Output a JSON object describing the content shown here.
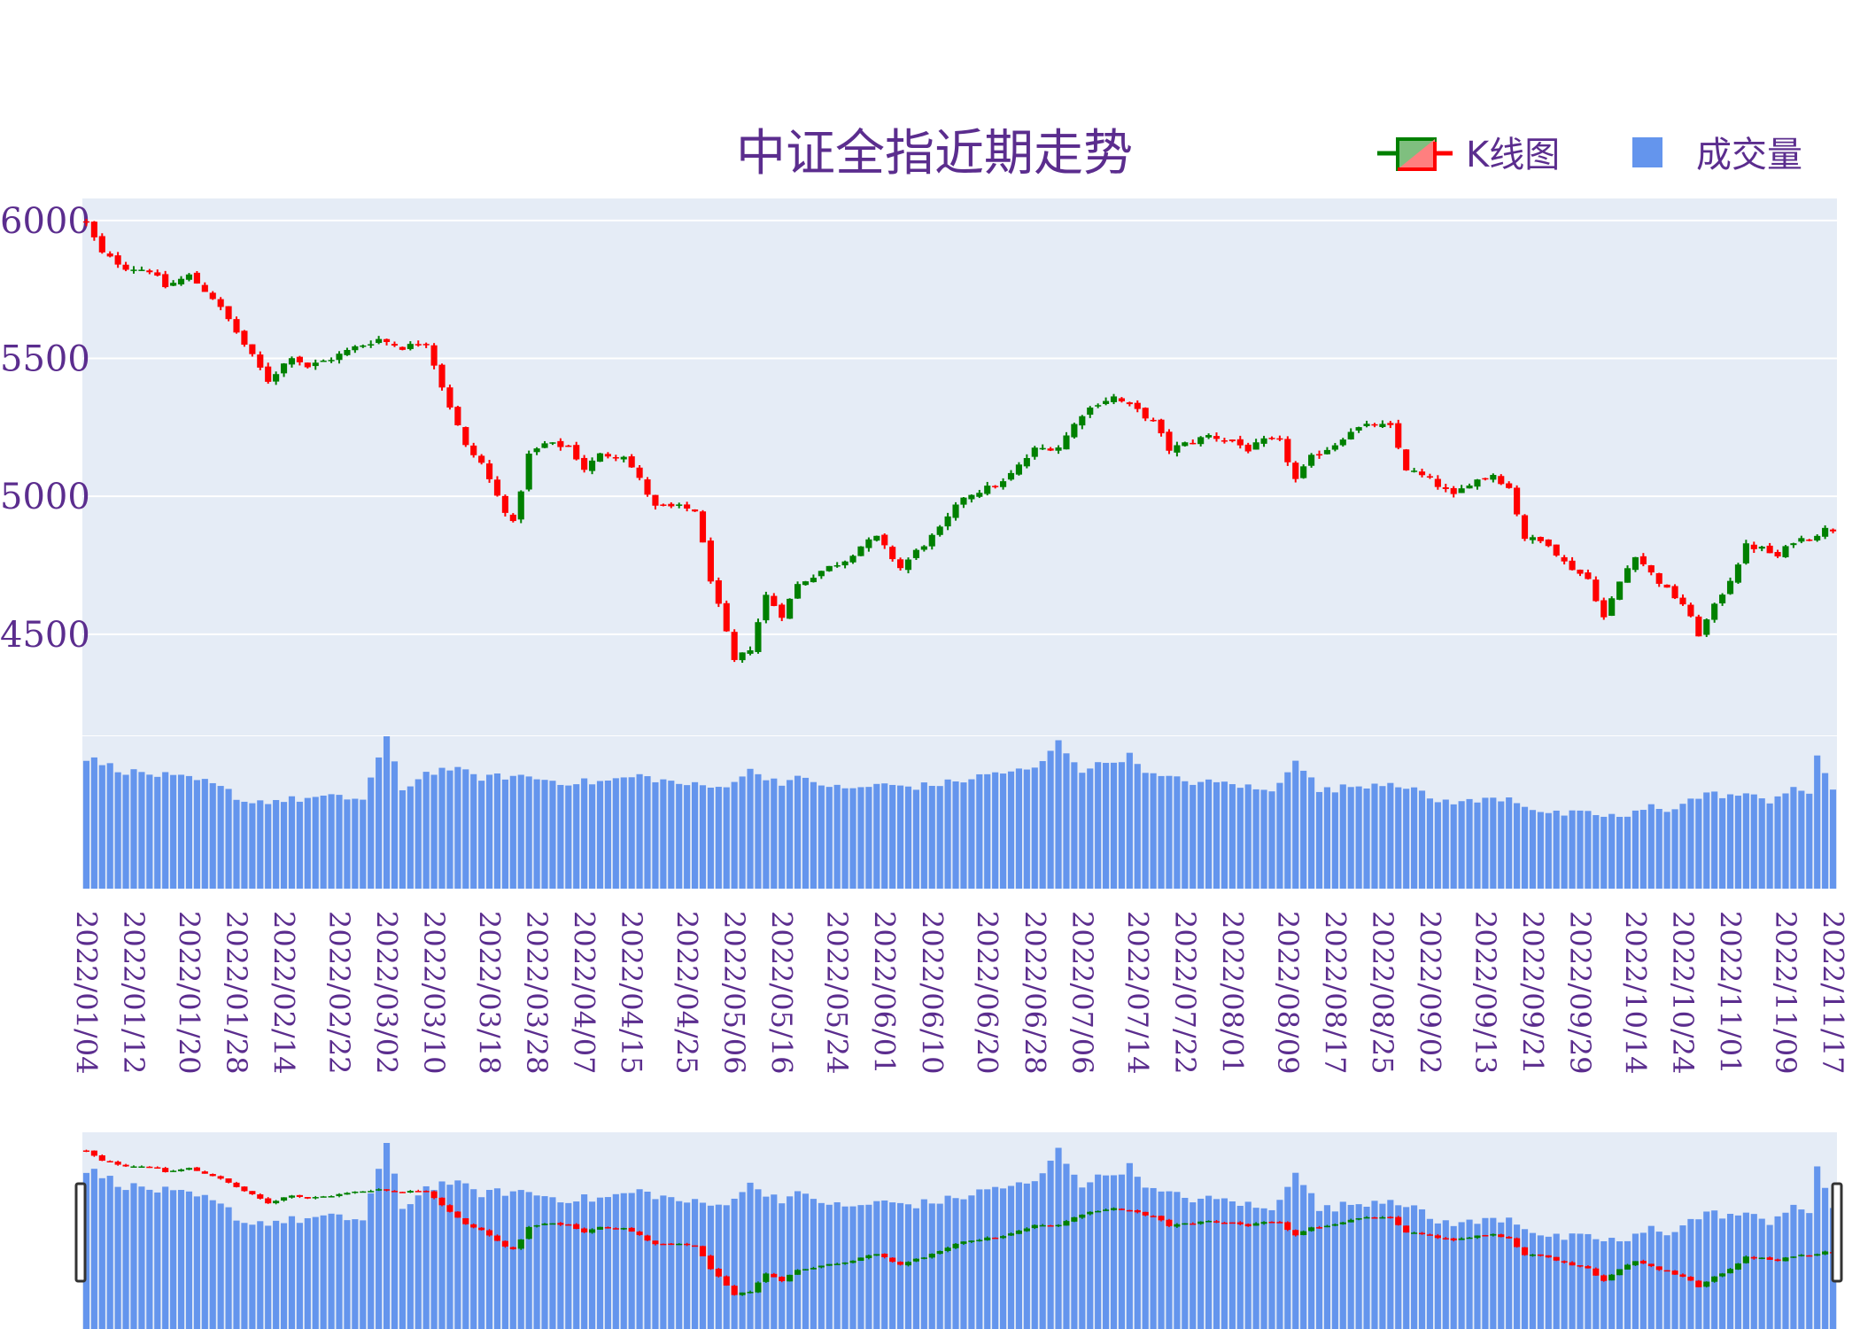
{
  "chart_data": {
    "type": "candlestick",
    "title": "中证全指近期走势",
    "legend": {
      "placement": "top-right",
      "items": [
        {
          "name": "K线图",
          "type": "candlestick"
        },
        {
          "name": "成交量",
          "type": "bar"
        }
      ]
    },
    "colors": {
      "increasing": "#008000",
      "decreasing": "#ff0000",
      "volume": "#6495ED",
      "plot_bg": "#E5ECF6",
      "text": "#5b2d8e",
      "grid": "#ffffff"
    },
    "yaxis": {
      "ticks": [
        4500,
        5000,
        5500,
        6000
      ],
      "range": [
        4130,
        6080
      ],
      "grid": true
    },
    "x_tick_labels": [
      "2022/01/04",
      "2022/01/12",
      "2022/01/20",
      "2022/01/28",
      "2022/02/14",
      "2022/02/22",
      "2022/03/02",
      "2022/03/10",
      "2022/03/18",
      "2022/03/28",
      "2022/04/07",
      "2022/04/15",
      "2022/04/25",
      "2022/05/06",
      "2022/05/16",
      "2022/05/24",
      "2022/06/01",
      "2022/06/10",
      "2022/06/20",
      "2022/06/28",
      "2022/07/06",
      "2022/07/14",
      "2022/07/22",
      "2022/08/01",
      "2022/08/09",
      "2022/08/17",
      "2022/08/25",
      "2022/09/02",
      "2022/09/13",
      "2022/09/21",
      "2022/09/29",
      "2022/10/14",
      "2022/10/24",
      "2022/11/01",
      "2022/11/09",
      "2022/11/17"
    ],
    "close_anchors": [
      [
        0,
        5990
      ],
      [
        2,
        5880
      ],
      [
        5,
        5830
      ],
      [
        8,
        5820
      ],
      [
        10,
        5760
      ],
      [
        13,
        5800
      ],
      [
        16,
        5720
      ],
      [
        18,
        5640
      ],
      [
        20,
        5550
      ],
      [
        23,
        5420
      ],
      [
        26,
        5510
      ],
      [
        28,
        5470
      ],
      [
        31,
        5500
      ],
      [
        34,
        5540
      ],
      [
        37,
        5570
      ],
      [
        40,
        5540
      ],
      [
        43,
        5560
      ],
      [
        45,
        5400
      ],
      [
        48,
        5180
      ],
      [
        50,
        5120
      ],
      [
        52,
        5000
      ],
      [
        54,
        4900
      ],
      [
        56,
        5150
      ],
      [
        58,
        5190
      ],
      [
        61,
        5180
      ],
      [
        63,
        5100
      ],
      [
        65,
        5150
      ],
      [
        68,
        5150
      ],
      [
        70,
        5060
      ],
      [
        72,
        4960
      ],
      [
        75,
        4960
      ],
      [
        77,
        4950
      ],
      [
        79,
        4700
      ],
      [
        80,
        4600
      ],
      [
        82,
        4400
      ],
      [
        84,
        4450
      ],
      [
        86,
        4640
      ],
      [
        88,
        4570
      ],
      [
        90,
        4680
      ],
      [
        93,
        4730
      ],
      [
        96,
        4770
      ],
      [
        98,
        4820
      ],
      [
        100,
        4850
      ],
      [
        103,
        4740
      ],
      [
        105,
        4800
      ],
      [
        108,
        4880
      ],
      [
        111,
        5000
      ],
      [
        114,
        5030
      ],
      [
        116,
        5050
      ],
      [
        118,
        5110
      ],
      [
        120,
        5170
      ],
      [
        123,
        5180
      ],
      [
        126,
        5300
      ],
      [
        128,
        5340
      ],
      [
        130,
        5360
      ],
      [
        133,
        5310
      ],
      [
        135,
        5270
      ],
      [
        137,
        5170
      ],
      [
        140,
        5200
      ],
      [
        142,
        5220
      ],
      [
        145,
        5200
      ],
      [
        147,
        5170
      ],
      [
        149,
        5200
      ],
      [
        151,
        5200
      ],
      [
        153,
        5060
      ],
      [
        155,
        5140
      ],
      [
        158,
        5190
      ],
      [
        160,
        5240
      ],
      [
        163,
        5260
      ],
      [
        165,
        5250
      ],
      [
        167,
        5100
      ],
      [
        170,
        5060
      ],
      [
        173,
        5000
      ],
      [
        175,
        5050
      ],
      [
        178,
        5080
      ],
      [
        180,
        5030
      ],
      [
        182,
        4850
      ],
      [
        185,
        4830
      ],
      [
        187,
        4760
      ],
      [
        190,
        4700
      ],
      [
        192,
        4560
      ],
      [
        194,
        4690
      ],
      [
        196,
        4790
      ],
      [
        198,
        4720
      ],
      [
        200,
        4660
      ],
      [
        202,
        4610
      ],
      [
        204,
        4500
      ],
      [
        206,
        4600
      ],
      [
        208,
        4700
      ],
      [
        210,
        4820
      ],
      [
        212,
        4810
      ],
      [
        214,
        4780
      ],
      [
        216,
        4840
      ],
      [
        218,
        4850
      ],
      [
        220,
        4880
      ],
      [
        221,
        4880
      ]
    ],
    "volume_level_anchors": [
      [
        0,
        0.86
      ],
      [
        5,
        0.77
      ],
      [
        10,
        0.74
      ],
      [
        15,
        0.7
      ],
      [
        18,
        0.64
      ],
      [
        20,
        0.57
      ],
      [
        25,
        0.58
      ],
      [
        30,
        0.6
      ],
      [
        35,
        0.59
      ],
      [
        38,
        0.99
      ],
      [
        40,
        0.65
      ],
      [
        43,
        0.76
      ],
      [
        46,
        0.79
      ],
      [
        50,
        0.73
      ],
      [
        55,
        0.74
      ],
      [
        60,
        0.7
      ],
      [
        65,
        0.7
      ],
      [
        70,
        0.74
      ],
      [
        75,
        0.69
      ],
      [
        80,
        0.66
      ],
      [
        84,
        0.77
      ],
      [
        88,
        0.7
      ],
      [
        90,
        0.72
      ],
      [
        93,
        0.69
      ],
      [
        96,
        0.65
      ],
      [
        100,
        0.68
      ],
      [
        105,
        0.67
      ],
      [
        110,
        0.7
      ],
      [
        115,
        0.76
      ],
      [
        120,
        0.78
      ],
      [
        123,
        0.96
      ],
      [
        126,
        0.78
      ],
      [
        130,
        0.84
      ],
      [
        132,
        0.87
      ],
      [
        135,
        0.74
      ],
      [
        140,
        0.7
      ],
      [
        145,
        0.69
      ],
      [
        150,
        0.63
      ],
      [
        153,
        0.86
      ],
      [
        156,
        0.64
      ],
      [
        160,
        0.67
      ],
      [
        165,
        0.7
      ],
      [
        168,
        0.66
      ],
      [
        170,
        0.58
      ],
      [
        175,
        0.57
      ],
      [
        180,
        0.6
      ],
      [
        182,
        0.55
      ],
      [
        185,
        0.49
      ],
      [
        190,
        0.49
      ],
      [
        195,
        0.47
      ],
      [
        198,
        0.54
      ],
      [
        200,
        0.52
      ],
      [
        205,
        0.62
      ],
      [
        210,
        0.61
      ],
      [
        213,
        0.58
      ],
      [
        216,
        0.67
      ],
      [
        218,
        0.6
      ],
      [
        219,
        0.87
      ],
      [
        221,
        0.66
      ]
    ],
    "n_sessions": 222
  }
}
